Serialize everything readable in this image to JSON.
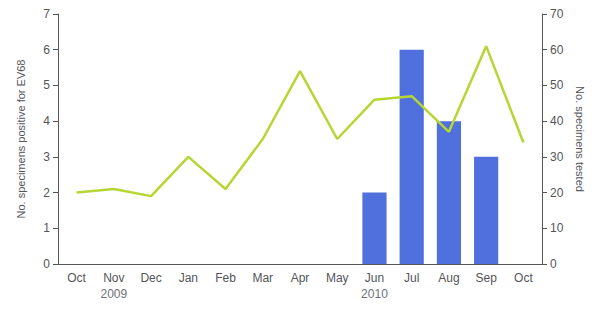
{
  "chart_data": {
    "type": "bar",
    "categories": [
      "Oct",
      "Nov",
      "Dec",
      "Jan",
      "Feb",
      "Mar",
      "Apr",
      "May",
      "Jun",
      "Jul",
      "Aug",
      "Sep",
      "Oct"
    ],
    "series": [
      {
        "type": "bar",
        "values": [
          0,
          0,
          0,
          0,
          0,
          0,
          0,
          0,
          2,
          6,
          4,
          3,
          0
        ]
      },
      {
        "type": "line",
        "axis": "y2",
        "values": [
          20,
          21,
          19,
          30,
          21,
          35,
          54,
          35,
          46,
          47,
          37,
          61,
          34
        ]
      }
    ],
    "ylabel": "No. specimens positive for EV68",
    "y2label": "No. specimens tested",
    "ylim": [
      0,
      7
    ],
    "yticks": [
      0,
      1,
      2,
      3,
      4,
      5,
      6,
      7
    ],
    "y2lim": [
      0,
      70
    ],
    "y2ticks": [
      0,
      10,
      20,
      30,
      40,
      50,
      60,
      70
    ],
    "annotations": [
      {
        "text": "2009",
        "x": 1
      },
      {
        "text": "2010",
        "x": 8
      }
    ],
    "grid": false
  }
}
